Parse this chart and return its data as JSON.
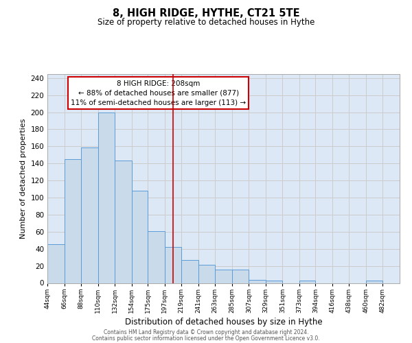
{
  "title": "8, HIGH RIDGE, HYTHE, CT21 5TE",
  "subtitle": "Size of property relative to detached houses in Hythe",
  "xlabel": "Distribution of detached houses by size in Hythe",
  "ylabel": "Number of detached properties",
  "bin_labels": [
    "44sqm",
    "66sqm",
    "88sqm",
    "110sqm",
    "132sqm",
    "154sqm",
    "175sqm",
    "197sqm",
    "219sqm",
    "241sqm",
    "263sqm",
    "285sqm",
    "307sqm",
    "329sqm",
    "351sqm",
    "373sqm",
    "394sqm",
    "416sqm",
    "438sqm",
    "460sqm",
    "482sqm"
  ],
  "bar_values": [
    45,
    145,
    159,
    200,
    143,
    108,
    61,
    42,
    27,
    21,
    16,
    16,
    4,
    3,
    0,
    3,
    0,
    0,
    0,
    3,
    0
  ],
  "bar_color_fill": "#c9daea",
  "bar_color_edge": "#5b9bd5",
  "vline_x": 208,
  "vline_color": "#cc0000",
  "annotation_text": "8 HIGH RIDGE: 208sqm\n← 88% of detached houses are smaller (877)\n11% of semi-detached houses are larger (113) →",
  "annotation_box_edgecolor": "#cc0000",
  "annotation_box_facecolor": "white",
  "ylim": [
    0,
    245
  ],
  "yticks": [
    0,
    20,
    40,
    60,
    80,
    100,
    120,
    140,
    160,
    180,
    200,
    220,
    240
  ],
  "bin_edges": [
    44,
    66,
    88,
    110,
    132,
    154,
    175,
    197,
    219,
    241,
    263,
    285,
    307,
    329,
    351,
    373,
    394,
    416,
    438,
    460,
    482,
    504
  ],
  "footer_line1": "Contains HM Land Registry data © Crown copyright and database right 2024.",
  "footer_line2": "Contains public sector information licensed under the Open Government Licence v3.0.",
  "background_color": "#ffffff",
  "grid_color": "#cccccc",
  "axes_facecolor": "#dce8f5"
}
